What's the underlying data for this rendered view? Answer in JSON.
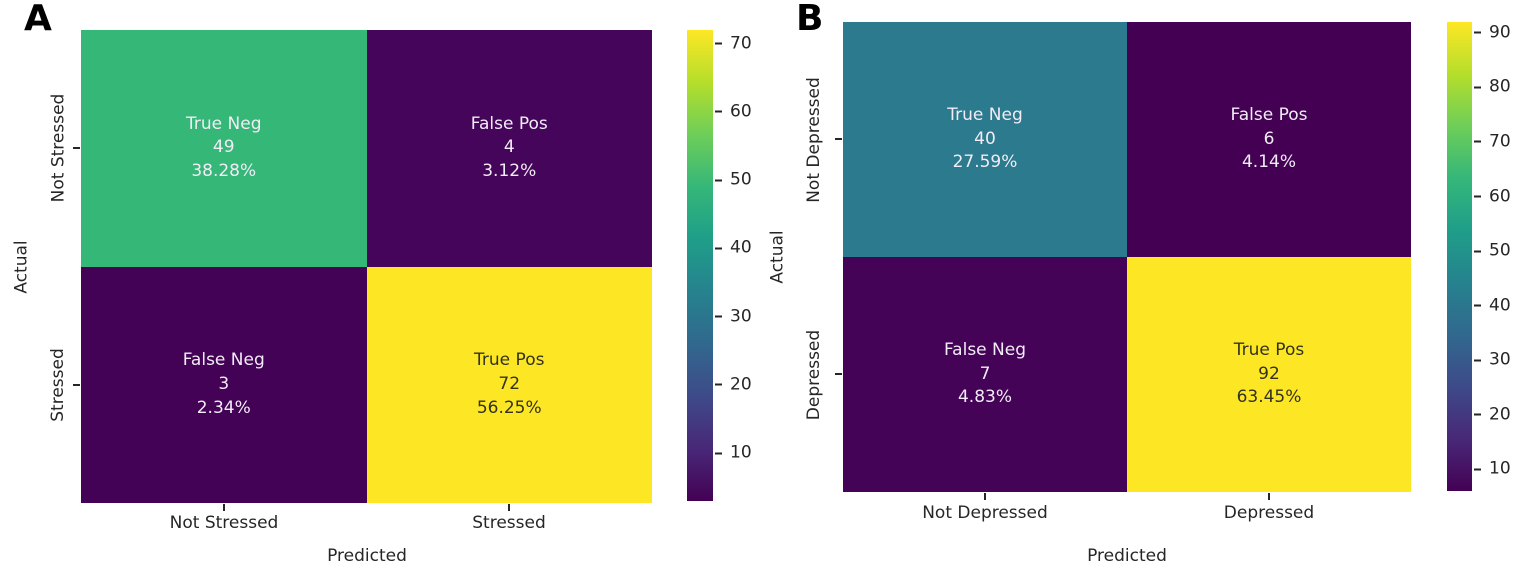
{
  "figure": {
    "background": "#ffffff",
    "panel_letters": [
      "A",
      "B"
    ]
  },
  "theme": {
    "colormap": "viridis",
    "annot_light": "#f2ecf6",
    "annot_dark": "#32321f",
    "tick_color": "#262626",
    "viridis_stops": [
      "#440154",
      "#482878",
      "#3e4a89",
      "#31688e",
      "#26828e",
      "#1f9e89",
      "#35b779",
      "#6ece58",
      "#b5de2b",
      "#fde725"
    ]
  },
  "chart_data": [
    {
      "type": "heatmap",
      "panel": "A",
      "title": "",
      "xlabel": "Predicted",
      "ylabel": "Actual",
      "x_categories": [
        "Not Stressed",
        "Stressed"
      ],
      "y_categories": [
        "Not Stressed",
        "Stressed"
      ],
      "values": [
        [
          49,
          4
        ],
        [
          3,
          72
        ]
      ],
      "cells": [
        {
          "label": "True Neg",
          "count": 49,
          "percent": "38.28%",
          "color": "#35b778",
          "text": "light"
        },
        {
          "label": "False Pos",
          "count": 4,
          "percent": "3.12%",
          "color": "#45055a",
          "text": "light"
        },
        {
          "label": "False Neg",
          "count": 3,
          "percent": "2.34%",
          "color": "#440256",
          "text": "light"
        },
        {
          "label": "True Pos",
          "count": 72,
          "percent": "56.25%",
          "color": "#fde725",
          "text": "dark"
        }
      ],
      "colorbar": {
        "vmin": 3,
        "vmax": 72,
        "ticks": [
          10,
          20,
          30,
          40,
          50,
          60,
          70
        ],
        "position": "right"
      },
      "grid": false
    },
    {
      "type": "heatmap",
      "panel": "B",
      "title": "",
      "xlabel": "Predicted",
      "ylabel": "Actual",
      "x_categories": [
        "Not Depressed",
        "Depressed"
      ],
      "y_categories": [
        "Not Depressed",
        "Depressed"
      ],
      "values": [
        [
          40,
          6
        ],
        [
          7,
          92
        ]
      ],
      "cells": [
        {
          "label": "True Neg",
          "count": 40,
          "percent": "27.59%",
          "color": "#2b7a8e",
          "text": "light"
        },
        {
          "label": "False Pos",
          "count": 6,
          "percent": "4.14%",
          "color": "#440154",
          "text": "light"
        },
        {
          "label": "False Neg",
          "count": 7,
          "percent": "4.83%",
          "color": "#440357",
          "text": "light"
        },
        {
          "label": "True Pos",
          "count": 92,
          "percent": "63.45%",
          "color": "#fde725",
          "text": "dark"
        }
      ],
      "colorbar": {
        "vmin": 6,
        "vmax": 92,
        "ticks": [
          10,
          20,
          30,
          40,
          50,
          60,
          70,
          80,
          90
        ],
        "position": "right"
      },
      "grid": false
    }
  ]
}
